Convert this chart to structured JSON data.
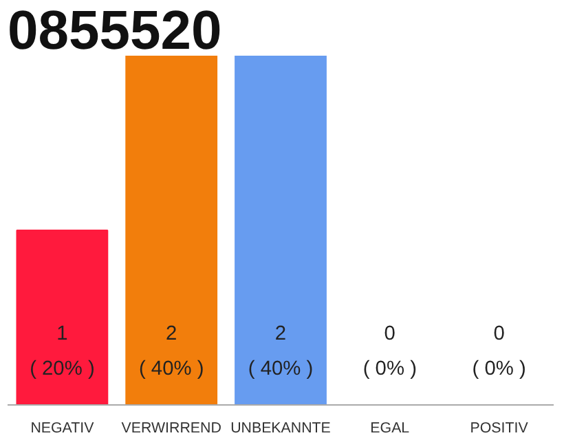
{
  "chart_data": {
    "type": "bar",
    "title": "0855520",
    "categories": [
      "NEGATIV",
      "VERWIRREND",
      "UNBEKANNTE",
      "EGAL",
      "POSITIV"
    ],
    "values": [
      1,
      2,
      2,
      0,
      0
    ],
    "colors": [
      "#ff1a3d",
      "#f27e0c",
      "#679cf0",
      "#cccccc",
      "#cccccc"
    ],
    "value_labels": [
      "1\n( 20% )",
      "2\n( 40% )",
      "2\n( 40% )",
      "0\n( 0% )",
      "0\n( 0% )"
    ],
    "grid": false
  }
}
